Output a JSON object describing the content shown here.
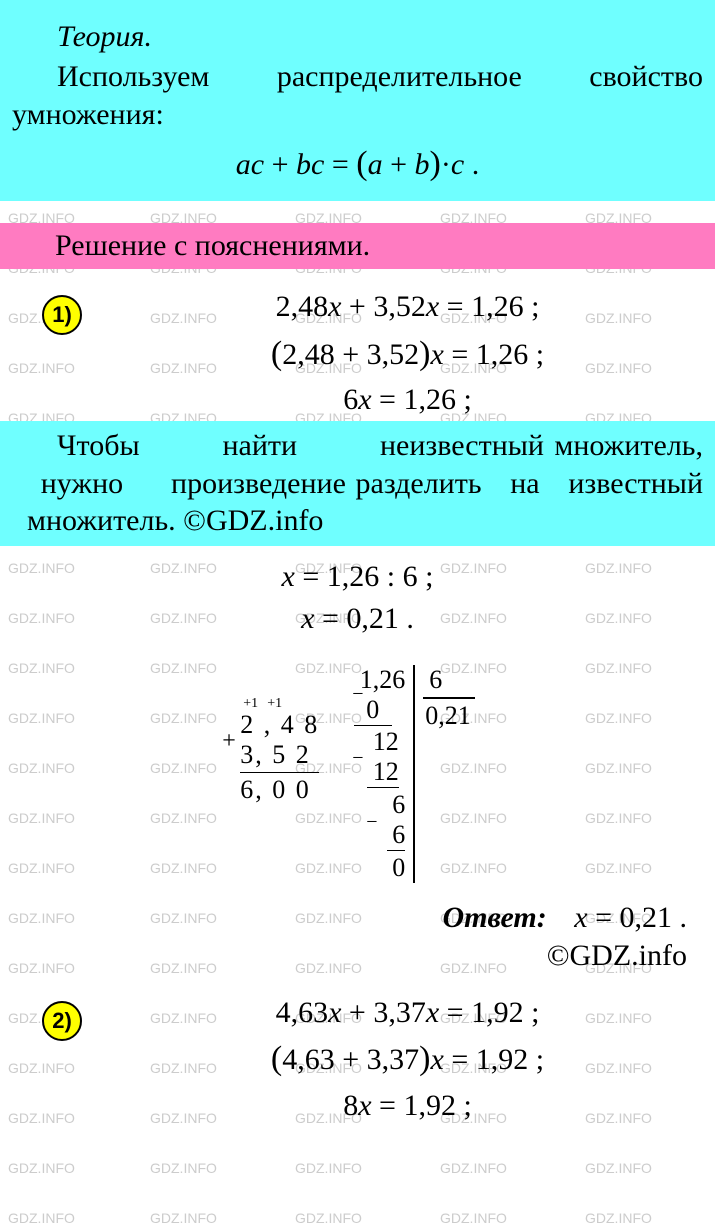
{
  "watermark": "GDZ.INFO",
  "colors": {
    "cyan": "#6fffff",
    "pink": "#ff7bc1",
    "yellow": "#ffff00",
    "watermark_gray": "#cccccc"
  },
  "theory": {
    "title": "Теория.",
    "body_line1": "Используем распределительное свойство умножения:",
    "formula": "ac + bc = (a + b)·c ."
  },
  "solution_header": "Решение с пояснениями.",
  "problem1": {
    "badge": "1)",
    "eq1": "2,48x + 3,52x = 1,26 ;",
    "eq2": "(2,48 + 3,52)x = 1,26 ;",
    "eq3": "6x = 1,26 ;",
    "rule": "Чтобы найти неизвестный множитель, нужно произведение разделить на известный множитель. ©GDZ.info",
    "res1": "x = 1,26 : 6 ;",
    "res2": "x = 0,21 .",
    "addition": {
      "carries": [
        "+1",
        "+1"
      ],
      "op1": "2 , 4 8",
      "op2": "3, 5 2",
      "sum": "6, 0 0"
    },
    "division": {
      "dividend": "1,26",
      "divisor": "6",
      "quotient": "0,21",
      "steps": [
        {
          "sub": "0",
          "rem": "12"
        },
        {
          "sub": "12",
          "rem": "6"
        },
        {
          "sub": "6",
          "rem": "0"
        }
      ]
    },
    "answer_label": "Ответ:",
    "answer_value": "x = 0,21 .",
    "answer_copyright": "©GDZ.info"
  },
  "problem2": {
    "badge": "2)",
    "eq1": "4,63x + 3,37x = 1,92 ;",
    "eq2": "(4,63 + 3,37)x = 1,92 ;",
    "eq3": "8x = 1,92 ;"
  }
}
